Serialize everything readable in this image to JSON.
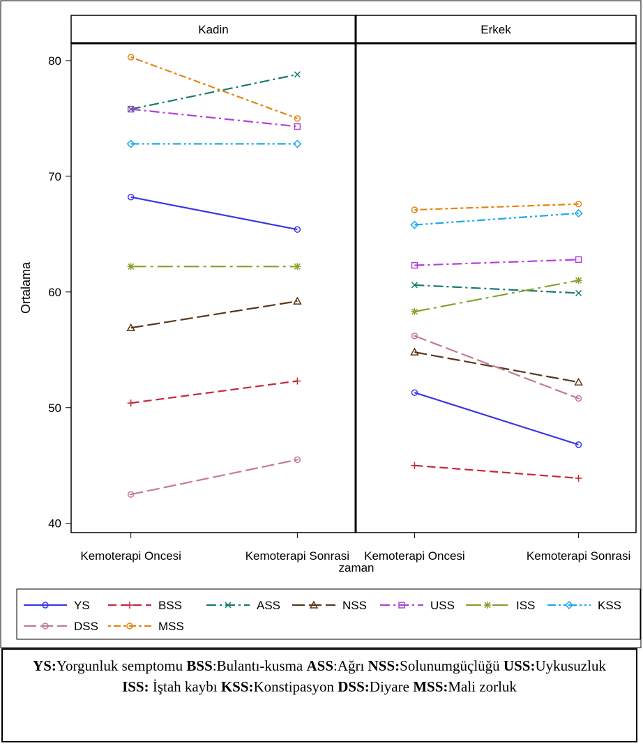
{
  "chart_data": {
    "type": "line",
    "panel_field": "",
    "panels": [
      "Kadin",
      "Erkek"
    ],
    "xlabel": "zaman",
    "ylabel": "Ortalama",
    "categories": [
      "Kemoterapi Oncesi",
      "Kemoterapi Sonrasi"
    ],
    "yticks": [
      40,
      50,
      60,
      70,
      80
    ],
    "ylim": [
      39.2,
      81.5
    ],
    "series": [
      {
        "name": "YS",
        "color": "#3b37e6",
        "dash": "solid",
        "marker": "circle",
        "values": {
          "Kadin": [
            68.2,
            65.4
          ],
          "Erkek": [
            51.3,
            46.8
          ]
        }
      },
      {
        "name": "BSS",
        "color": "#c4283c",
        "dash": "dash",
        "marker": "plus",
        "values": {
          "Kadin": [
            50.4,
            52.3
          ],
          "Erkek": [
            45.0,
            43.9
          ]
        }
      },
      {
        "name": "ASS",
        "color": "#16796f",
        "dash": "dashdot",
        "marker": "x",
        "values": {
          "Kadin": [
            75.8,
            78.8
          ],
          "Erkek": [
            60.6,
            59.9
          ]
        }
      },
      {
        "name": "NSS",
        "color": "#5a3616",
        "dash": "longdash",
        "marker": "triangle",
        "values": {
          "Kadin": [
            56.9,
            59.2
          ],
          "Erkek": [
            54.8,
            52.2
          ]
        }
      },
      {
        "name": "USS",
        "color": "#b040d8",
        "dash": "dashdot",
        "marker": "square",
        "values": {
          "Kadin": [
            75.8,
            74.3
          ],
          "Erkek": [
            62.3,
            62.8
          ]
        }
      },
      {
        "name": "ISS",
        "color": "#86a02c",
        "dash": "longdashdot",
        "marker": "star",
        "values": {
          "Kadin": [
            62.2,
            62.2
          ],
          "Erkek": [
            58.3,
            61.0
          ]
        }
      },
      {
        "name": "KSS",
        "color": "#1ca8ee",
        "dash": "dashdotdot",
        "marker": "diamond",
        "values": {
          "Kadin": [
            72.8,
            72.8
          ],
          "Erkek": [
            65.8,
            66.8
          ]
        }
      },
      {
        "name": "DSS",
        "color": "#c47a93",
        "dash": "longdash",
        "marker": "circleplus",
        "values": {
          "Kadin": [
            42.5,
            45.5
          ],
          "Erkek": [
            56.2,
            50.8
          ]
        }
      },
      {
        "name": "MSS",
        "color": "#e38710",
        "dash": "dotdash",
        "marker": "circle",
        "values": {
          "Kadin": [
            80.3,
            75.0
          ],
          "Erkek": [
            67.1,
            67.6
          ]
        }
      }
    ]
  },
  "caption": [
    {
      "bold": "YS:",
      "text": "Yorgunluk semptomu  "
    },
    {
      "bold": "BSS",
      "text": ":Bulantı-kusma  "
    },
    {
      "bold": "ASS",
      "text": ":Ağrı  "
    },
    {
      "bold": "NSS:",
      "text": "Solunumgüçlüğü "
    },
    {
      "bold": "USS:",
      "text": "Uykusuzluk  "
    },
    {
      "bold": "ISS:",
      "text": " İştah kaybı "
    },
    {
      "bold": "KSS:",
      "text": "Konstipasyon "
    },
    {
      "bold": "DSS:",
      "text": "Diyare  "
    },
    {
      "bold": "MSS:",
      "text": "Mali zorluk"
    }
  ]
}
